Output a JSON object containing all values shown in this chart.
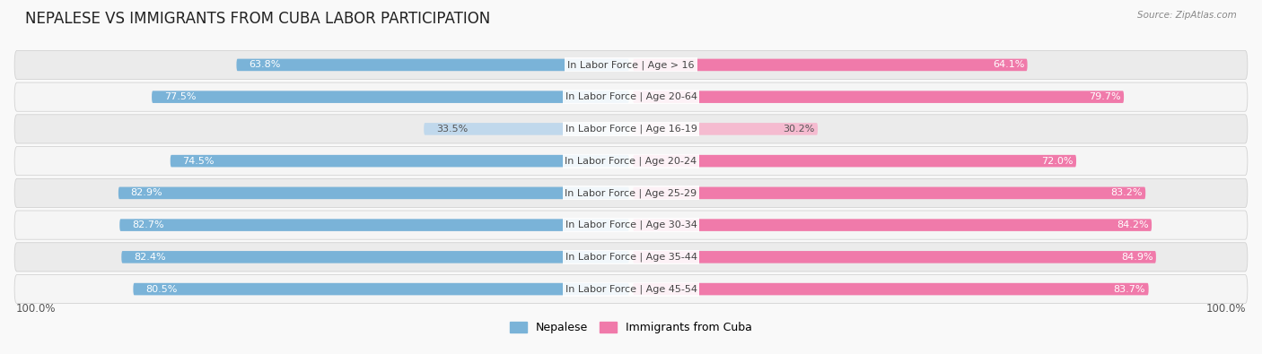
{
  "title": "NEPALESE VS IMMIGRANTS FROM CUBA LABOR PARTICIPATION",
  "source": "Source: ZipAtlas.com",
  "categories": [
    "In Labor Force | Age > 16",
    "In Labor Force | Age 20-64",
    "In Labor Force | Age 16-19",
    "In Labor Force | Age 20-24",
    "In Labor Force | Age 25-29",
    "In Labor Force | Age 30-34",
    "In Labor Force | Age 35-44",
    "In Labor Force | Age 45-54"
  ],
  "nepalese": [
    63.8,
    77.5,
    33.5,
    74.5,
    82.9,
    82.7,
    82.4,
    80.5
  ],
  "cuba": [
    64.1,
    79.7,
    30.2,
    72.0,
    83.2,
    84.2,
    84.9,
    83.7
  ],
  "nepalese_color": "#7ab3d8",
  "nepalese_light_color": "#c0d8ec",
  "cuba_color": "#f07aaa",
  "cuba_light_color": "#f5bbd0",
  "row_bg_even": "#ebebeb",
  "row_bg_odd": "#f5f5f5",
  "bg_color": "#f9f9f9",
  "legend_nepalese": "Nepalese",
  "legend_cuba": "Immigrants from Cuba",
  "max_value": 100.0,
  "title_fontsize": 12,
  "label_fontsize": 8,
  "value_fontsize": 8,
  "tick_fontsize": 8.5
}
